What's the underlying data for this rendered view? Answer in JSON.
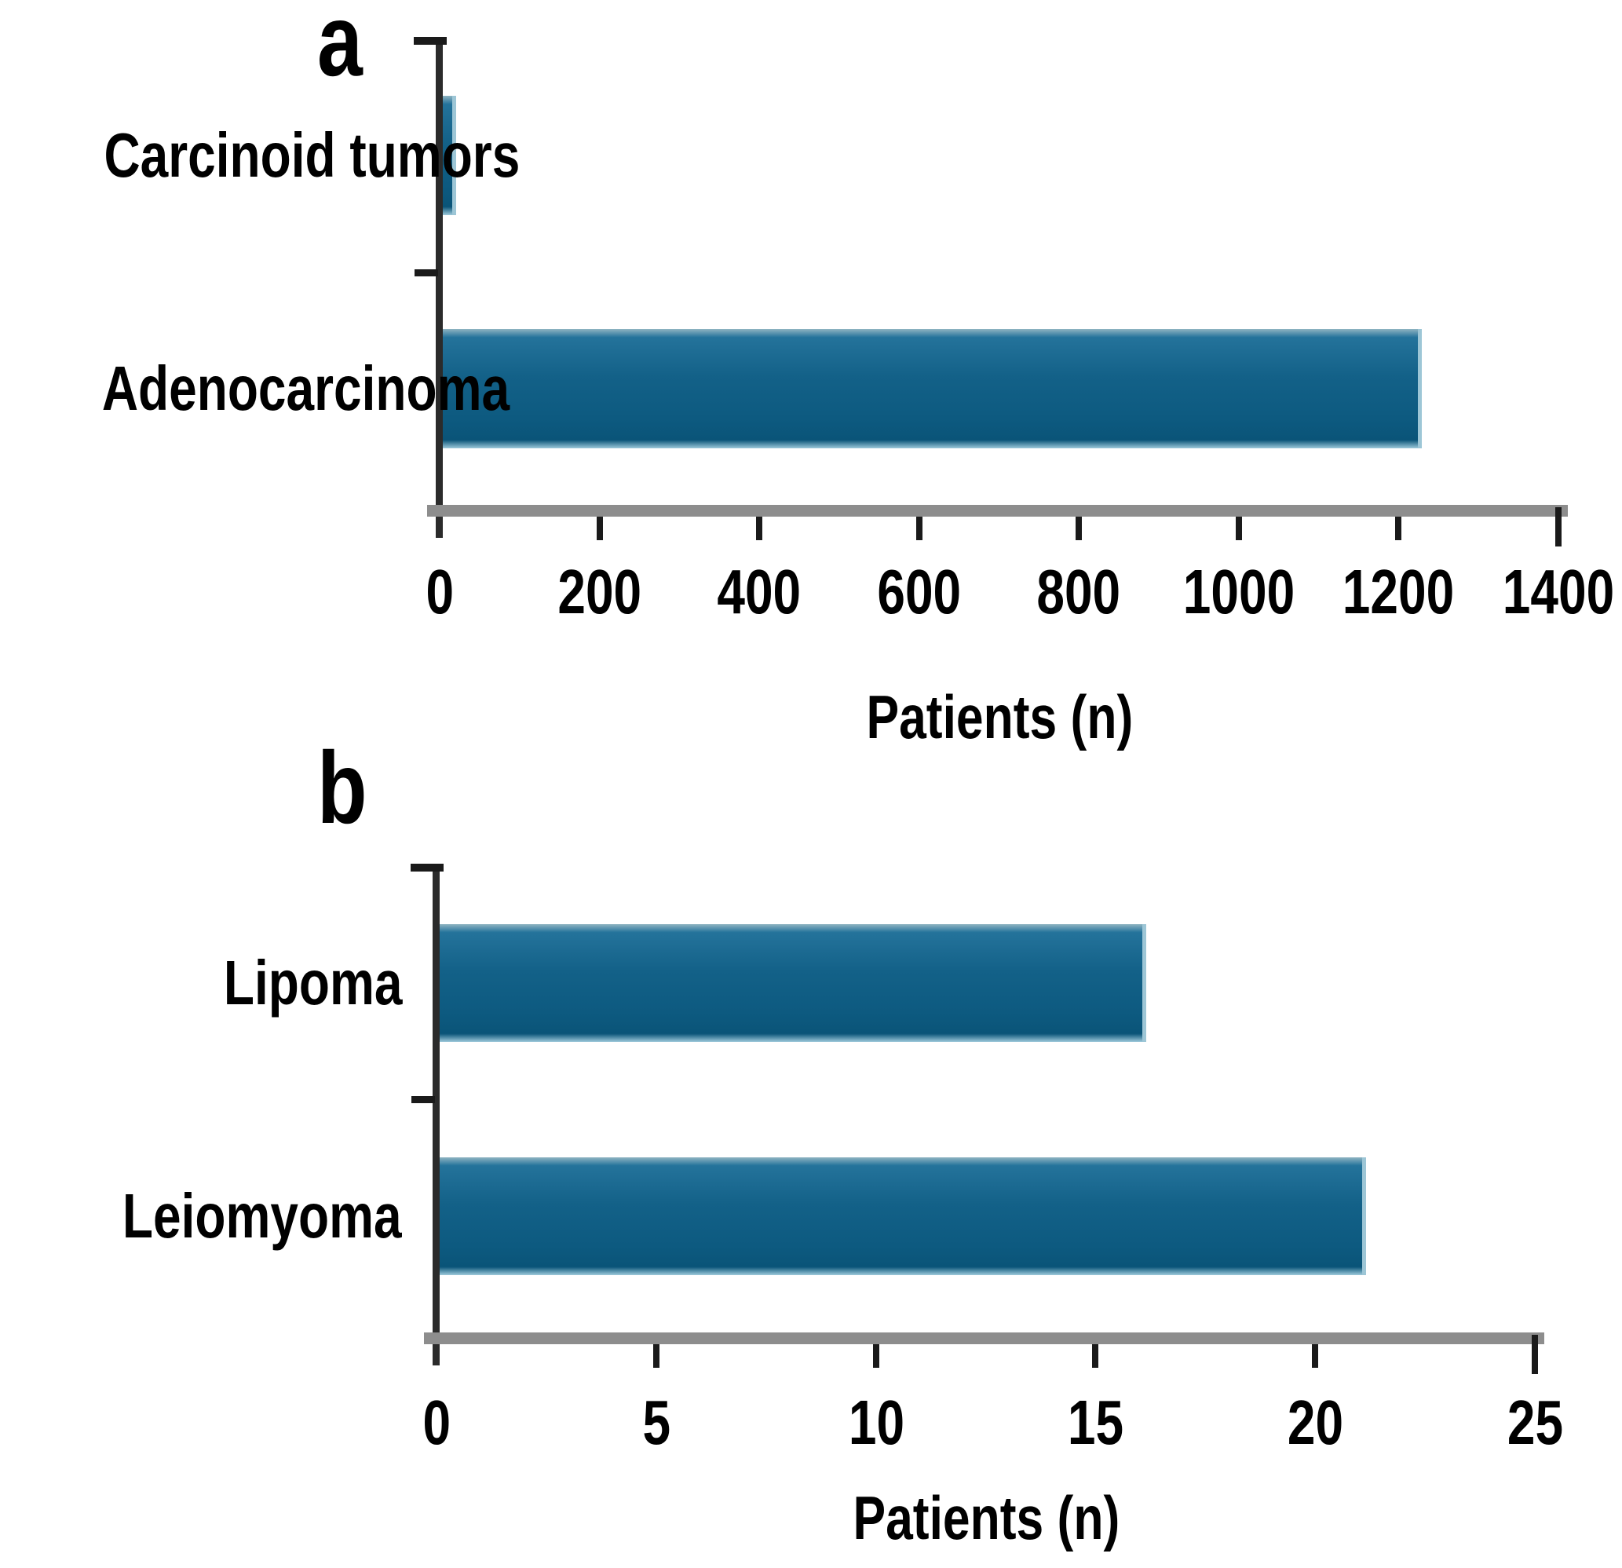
{
  "figure_background": "#ffffff",
  "chart_data": [
    {
      "type": "bar",
      "orientation": "horizontal",
      "panel_label": "a",
      "categories": [
        "Carcinoid tumors",
        "Adenocarcinoma"
      ],
      "values": [
        12,
        1220
      ],
      "xlabel": "Patients (n)",
      "xticks": [
        0,
        200,
        400,
        600,
        800,
        1000,
        1200,
        1400
      ],
      "xlim": [
        0,
        1400
      ],
      "grid": false,
      "legend": null
    },
    {
      "type": "bar",
      "orientation": "horizontal",
      "panel_label": "b",
      "categories": [
        "Lipoma",
        "Leiomyoma"
      ],
      "values": [
        16,
        21
      ],
      "xlabel": "Patients (n)",
      "xticks": [
        0,
        5,
        10,
        15,
        20,
        25
      ],
      "xlim": [
        0,
        25
      ],
      "grid": false,
      "legend": null
    }
  ],
  "colors": {
    "bar_body": "#136188",
    "bar_top_edge": "#8fb4c2",
    "bar_dark": "#0a5478",
    "bar_right_fade": "#9dc6d6",
    "axis_gray": "#8d8d8d",
    "axis_black": "#1a1a1a",
    "text": "#000000"
  }
}
